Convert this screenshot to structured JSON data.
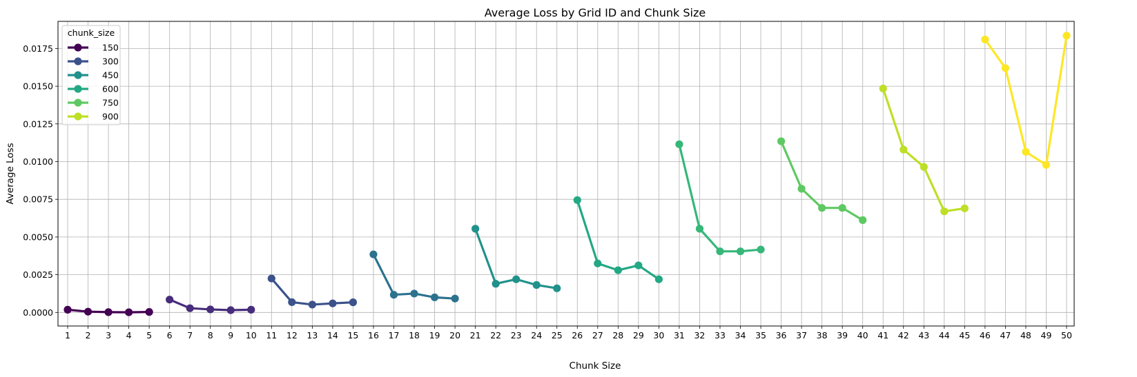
{
  "chart_data": {
    "type": "line",
    "title": "Average Loss by Grid ID and Chunk Size",
    "xlabel": "Chunk Size",
    "ylabel": "Average Loss",
    "categories": [
      "1",
      "2",
      "3",
      "4",
      "5",
      "6",
      "7",
      "8",
      "9",
      "10",
      "11",
      "12",
      "13",
      "14",
      "15",
      "16",
      "17",
      "18",
      "19",
      "20",
      "21",
      "22",
      "23",
      "24",
      "25",
      "26",
      "27",
      "28",
      "29",
      "30",
      "31",
      "32",
      "33",
      "34",
      "35",
      "36",
      "37",
      "38",
      "39",
      "40",
      "41",
      "42",
      "43",
      "44",
      "45",
      "46",
      "47",
      "48",
      "49",
      "50"
    ],
    "ylim": [
      -0.0009,
      0.0193
    ],
    "yticks": [
      0.0,
      0.0025,
      0.005,
      0.0075,
      0.01,
      0.0125,
      0.015,
      0.0175
    ],
    "ytick_labels": [
      "0.0000",
      "0.0025",
      "0.0050",
      "0.0075",
      "0.0100",
      "0.0125",
      "0.0150",
      "0.0175"
    ],
    "grid": true,
    "legend": {
      "title": "chunk_size",
      "placement": "top-left",
      "entries": [
        "150",
        "300",
        "450",
        "600",
        "750",
        "900"
      ]
    },
    "legend_colors": [
      "#440154",
      "#3b528b",
      "#21918c",
      "#22a884",
      "#5ec962",
      "#bddf26"
    ],
    "segments": [
      {
        "start": 1,
        "color": "#440154",
        "values": [
          0.00018,
          5e-05,
          2e-05,
          1e-05,
          3e-05
        ]
      },
      {
        "start": 6,
        "color": "#472d7b",
        "values": [
          0.00085,
          0.00028,
          0.0002,
          0.00015,
          0.00018
        ]
      },
      {
        "start": 11,
        "color": "#3b528b",
        "values": [
          0.00225,
          0.00068,
          0.00052,
          0.0006,
          0.00067
        ]
      },
      {
        "start": 16,
        "color": "#2c728e",
        "values": [
          0.00385,
          0.00117,
          0.00125,
          0.001,
          0.00092
        ]
      },
      {
        "start": 21,
        "color": "#21918c",
        "values": [
          0.00555,
          0.0019,
          0.0022,
          0.00182,
          0.0016
        ]
      },
      {
        "start": 26,
        "color": "#22a884",
        "values": [
          0.00745,
          0.00325,
          0.0028,
          0.00312,
          0.0022
        ]
      },
      {
        "start": 31,
        "color": "#35b779",
        "values": [
          0.01115,
          0.00555,
          0.00405,
          0.00405,
          0.00417
        ]
      },
      {
        "start": 36,
        "color": "#5ec962",
        "values": [
          0.01135,
          0.0082,
          0.00693,
          0.00693,
          0.00612
        ]
      },
      {
        "start": 41,
        "color": "#bddf26",
        "values": [
          0.01485,
          0.0108,
          0.00965,
          0.0067,
          0.0069
        ]
      },
      {
        "start": 46,
        "color": "#fde725",
        "values": [
          0.0181,
          0.0162,
          0.01065,
          0.00978,
          0.01835
        ]
      }
    ]
  }
}
